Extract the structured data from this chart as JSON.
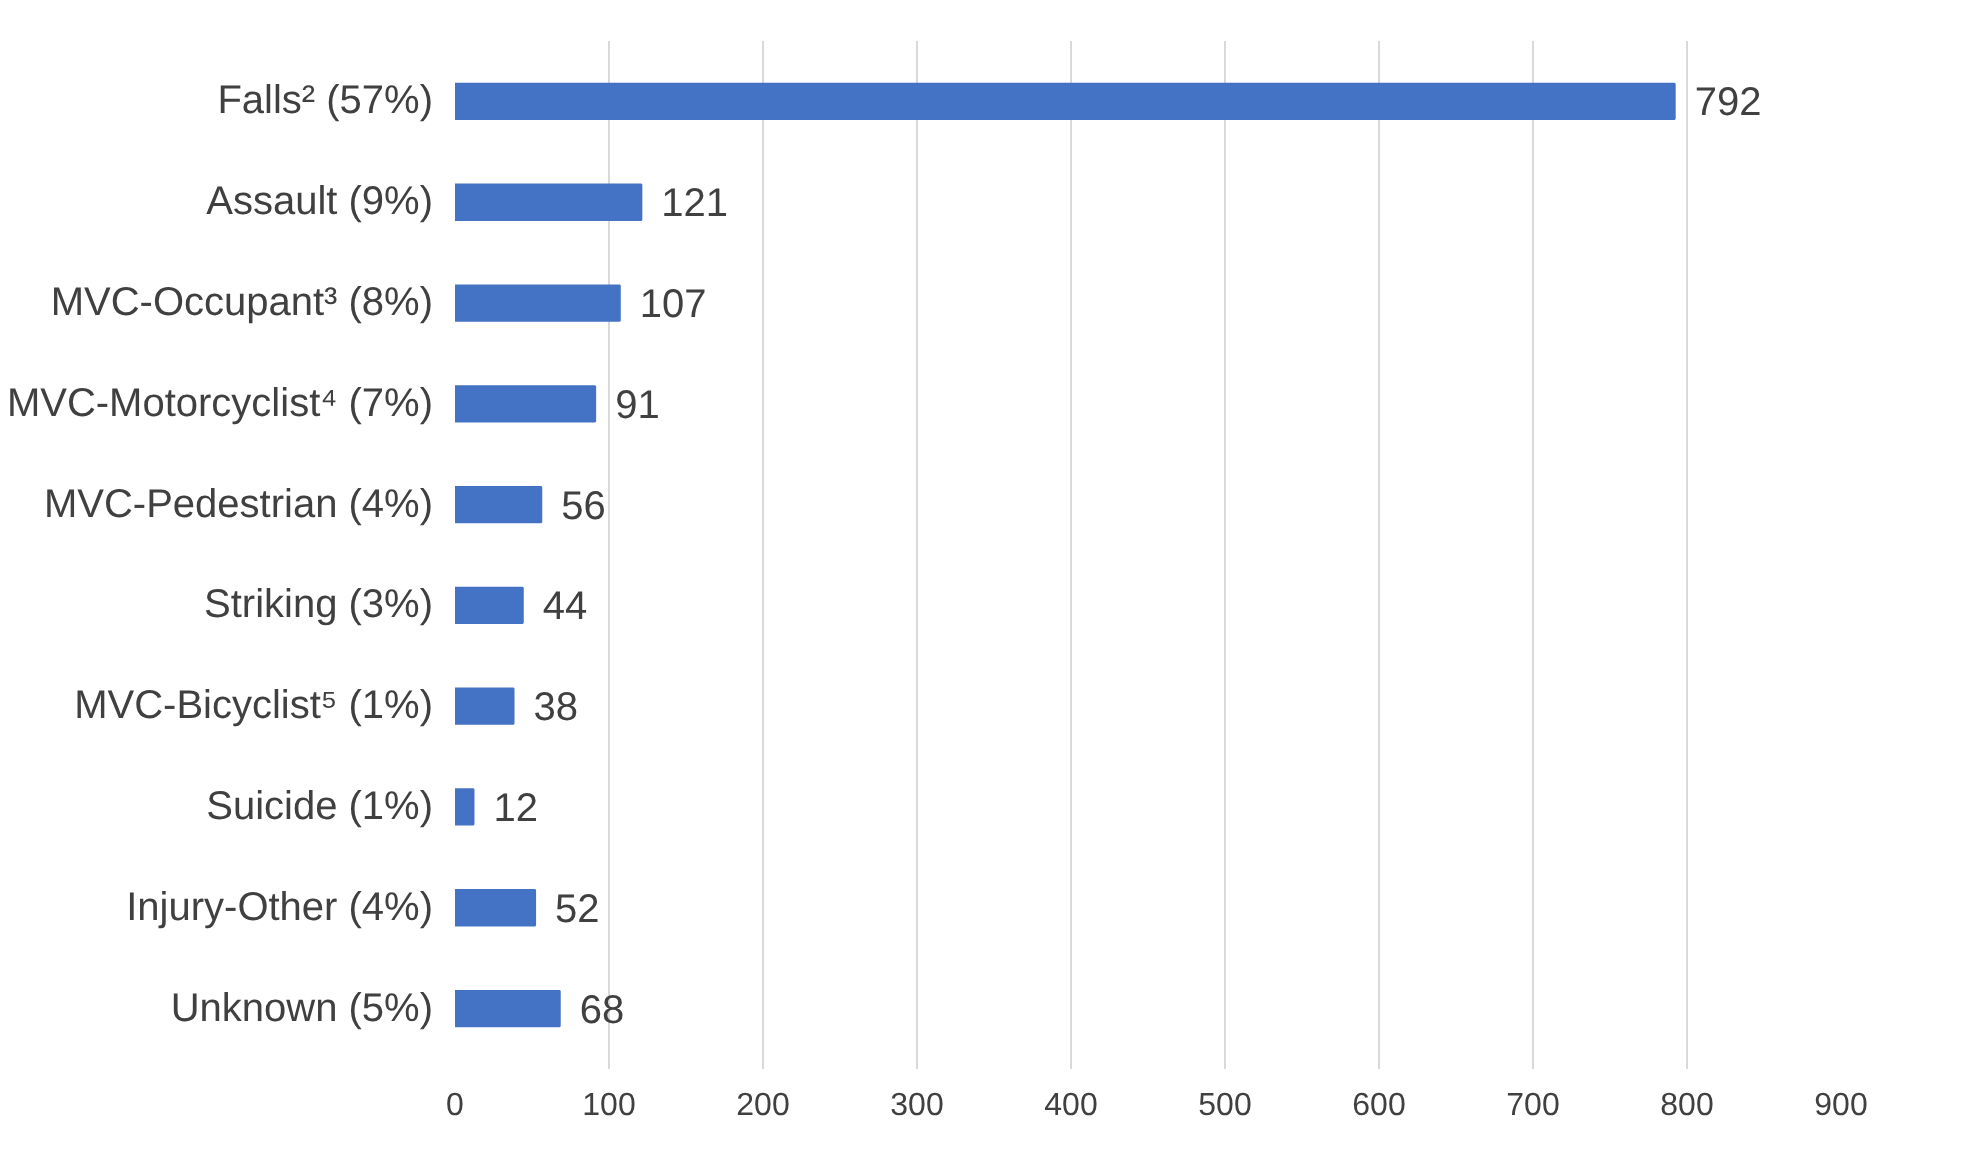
{
  "chart_data": {
    "type": "bar",
    "orientation": "horizontal",
    "categories": [
      "Falls² (57%)",
      "Assault (9%)",
      "MVC-Occupant³ (8%)",
      "MVC-Motorcyclist⁴ (7%)",
      "MVC-Pedestrian (4%)",
      "Striking (3%)",
      "MVC-Bicyclist⁵ (1%)",
      "Suicide (1%)",
      "Injury-Other (4%)",
      "Unknown (5%)"
    ],
    "values": [
      792,
      121,
      107,
      91,
      56,
      44,
      38,
      12,
      52,
      68
    ],
    "color": "#4472c4",
    "xlim": [
      0,
      900
    ],
    "xticks": [
      0,
      100,
      200,
      300,
      400,
      500,
      600,
      700,
      800,
      900
    ],
    "grid": "x",
    "data_labels": true
  }
}
